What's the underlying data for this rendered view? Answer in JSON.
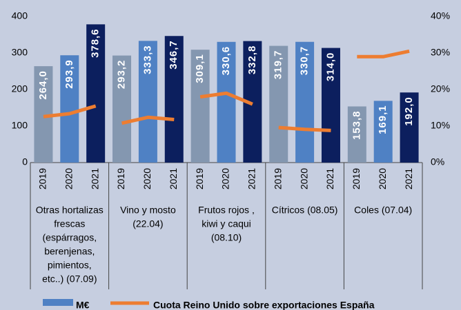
{
  "chart_data": {
    "type": "bar-line",
    "categories": [
      "2019",
      "2020",
      "2021",
      "2019",
      "2020",
      "2021",
      "2019",
      "2020",
      "2021",
      "2019",
      "2020",
      "2021",
      "2019",
      "2020",
      "2021"
    ],
    "groups": [
      [
        "Otras hortalizas",
        "frescas",
        "(espárragos,",
        "berenjenas,",
        "pimientos,",
        "etc..) (07.09)"
      ],
      [
        "Vino y mosto",
        "(22.04)"
      ],
      [
        "Frutos rojos ,",
        "kiwi  y caqui",
        "(08.10)"
      ],
      [
        "Cítricos (08.05)"
      ],
      [
        "Coles (07.04)"
      ]
    ],
    "series": [
      {
        "name": "M€",
        "type": "bar",
        "color": "#4f81c4",
        "year_colors": [
          "#8497b0",
          "#4f81c4",
          "#0c1f5e"
        ],
        "values": [
          264.0,
          293.9,
          378.6,
          293.2,
          333.3,
          346.7,
          309.1,
          330.6,
          332.8,
          319.7,
          330.7,
          314.0,
          153.8,
          169.1,
          192.0
        ],
        "value_labels": [
          "264,0",
          "293,9",
          "378,6",
          "293,2",
          "333,3",
          "346,7",
          "309,1",
          "330,6",
          "332,8",
          "319,7",
          "330,7",
          "314,0",
          "153,8",
          "169,1",
          "192,0"
        ]
      },
      {
        "name": "Cuota Reino Unido sobre exportaciones España",
        "type": "line",
        "axis": "y2",
        "color": "#ed7d31",
        "values": [
          12.6,
          13.4,
          15.5,
          10.8,
          12.4,
          11.8,
          18.0,
          19.0,
          16.0,
          9.6,
          9.1,
          8.8,
          29.0,
          29.0,
          30.5
        ]
      }
    ],
    "ylim": [
      0,
      400
    ],
    "yticks": [
      0,
      100,
      200,
      300,
      400
    ],
    "y2lim": [
      0,
      40
    ],
    "y2ticks": [
      {
        "value": 0,
        "label": "0%"
      },
      {
        "value": 10,
        "label": "10%"
      },
      {
        "value": 20,
        "label": "20%"
      },
      {
        "value": 30,
        "label": "30%"
      },
      {
        "value": 40,
        "label": "40%"
      }
    ]
  }
}
